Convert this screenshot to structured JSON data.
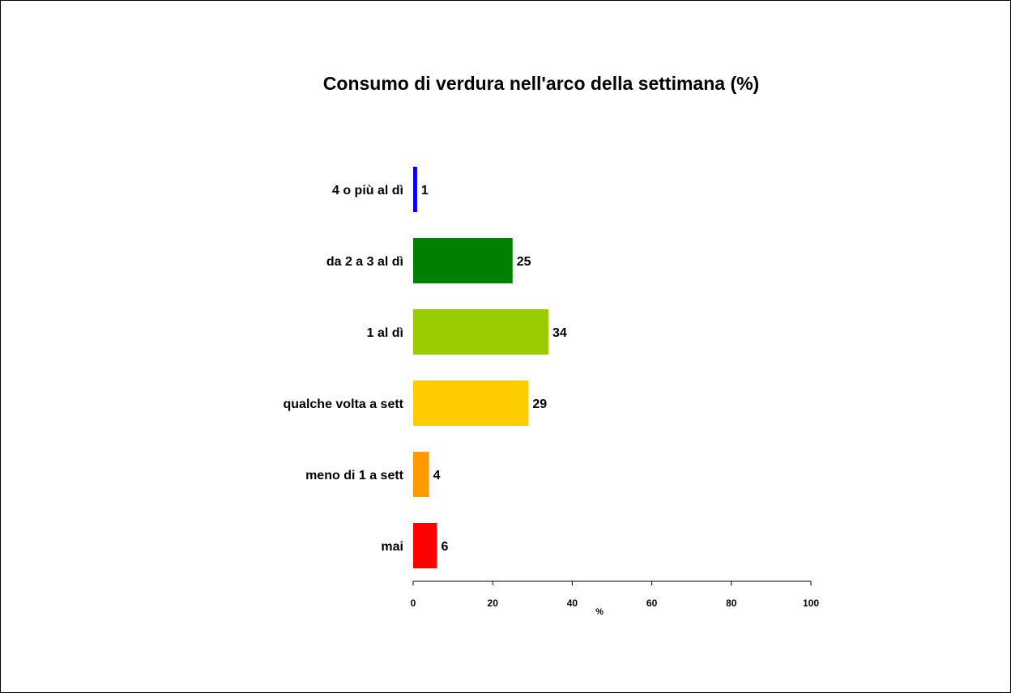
{
  "chart_data": {
    "type": "bar",
    "orientation": "horizontal",
    "title": "Consumo di verdura nell'arco della settimana  (%)",
    "xlabel": "%",
    "ylabel": "",
    "xlim": [
      0,
      100
    ],
    "xticks": [
      0,
      20,
      40,
      60,
      80,
      100
    ],
    "grid": false,
    "categories": [
      "4 o più al dì",
      "da 2 a 3 al dì",
      "1 al dì",
      "qualche volta a sett",
      "meno di 1 a sett",
      "mai"
    ],
    "values": [
      1,
      25,
      34,
      29,
      4,
      6
    ],
    "colors": [
      "#0000ff",
      "#008000",
      "#99cc00",
      "#ffcc00",
      "#ff9900",
      "#ff0000"
    ],
    "data_labels": [
      "1",
      "25",
      "34",
      "29",
      "4",
      "6"
    ]
  }
}
